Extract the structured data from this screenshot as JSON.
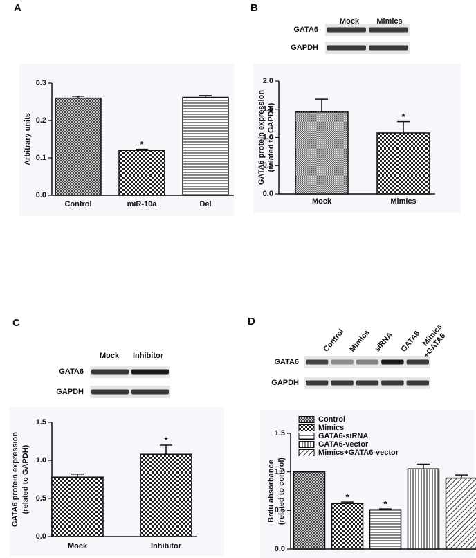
{
  "chart_data": [
    {
      "type": "bar",
      "label": "A",
      "ylabel": [
        "Arbitrary units"
      ],
      "categories": [
        "Control",
        "miR-10a",
        "Del"
      ],
      "values": [
        0.26,
        0.12,
        0.262
      ],
      "errors": [
        0.005,
        0.003,
        0.005
      ],
      "significance": [
        null,
        "*",
        null
      ],
      "patterns": [
        "crosshatch",
        "checker",
        "hlines"
      ],
      "ylim": [
        0,
        0.3
      ],
      "yticks": [
        {
          "value": 0,
          "label": "0.0"
        },
        0.1,
        0.2,
        0.3
      ]
    },
    {
      "type": "bar",
      "label": "B",
      "ylabel": [
        "GATA6 protein expression",
        "(related to GAPDH)"
      ],
      "blot": {
        "lanes": [
          "Mock",
          "Mimics"
        ],
        "rows": [
          "GATA6",
          "GAPDH"
        ]
      },
      "categories": [
        "Mock",
        "Mimics"
      ],
      "values": [
        1.45,
        1.08
      ],
      "errors": [
        0.23,
        0.2
      ],
      "significance": [
        null,
        "*"
      ],
      "patterns": [
        "fine",
        "checker"
      ],
      "ylim": [
        0,
        2
      ],
      "yticks": [
        {
          "value": 0,
          "label": "0.0"
        },
        0.5,
        {
          "value": 1,
          "label": "1.0"
        },
        1.5,
        {
          "value": 2,
          "label": "2.0"
        }
      ]
    },
    {
      "type": "bar",
      "label": "C",
      "ylabel": [
        "GATA6 protein expression",
        "(related to GAPDH)"
      ],
      "blot": {
        "lanes": [
          "Mock",
          "Inhibitor"
        ],
        "rows": [
          "GATA6",
          "GAPDH"
        ]
      },
      "categories": [
        "Mock",
        "Inhibitor"
      ],
      "values": [
        0.78,
        1.08
      ],
      "errors": [
        0.04,
        0.12
      ],
      "significance": [
        null,
        "*"
      ],
      "patterns": [
        "checker",
        "checker"
      ],
      "ylim": [
        0,
        1.5
      ],
      "yticks": [
        {
          "value": 0,
          "label": "0.0"
        },
        0.5,
        {
          "value": 1,
          "label": "1.0"
        },
        1.5
      ]
    },
    {
      "type": "bar",
      "label": "D",
      "ylabel": [
        "Brdu absorbance",
        "(related to control)"
      ],
      "blot": {
        "lanes": [
          "Control",
          "Mimics",
          "siRNA",
          "GATA6",
          [
            "Mimics",
            "+GATA6"
          ]
        ],
        "rows": [
          "GATA6",
          "GAPDH"
        ]
      },
      "categories": [
        "Control",
        "Mimics",
        "GATA6-siRNA",
        "GATA6-vector",
        "Mimics+GATA6-vector"
      ],
      "values": [
        1.0,
        0.59,
        0.51,
        1.04,
        0.92
      ],
      "errors": [
        null,
        0.02,
        0.01,
        0.06,
        0.04
      ],
      "significance": [
        null,
        "*",
        "*",
        null,
        null
      ],
      "patterns": [
        "crosshatch",
        "checker",
        "hlines",
        "vlines",
        "diagonal"
      ],
      "legend": "top-left",
      "ylim": [
        0,
        1.5
      ],
      "yticks": [
        {
          "value": 0,
          "label": "0.0"
        },
        0.5,
        {
          "value": 1,
          "label": "1.0"
        },
        1.5
      ]
    }
  ]
}
